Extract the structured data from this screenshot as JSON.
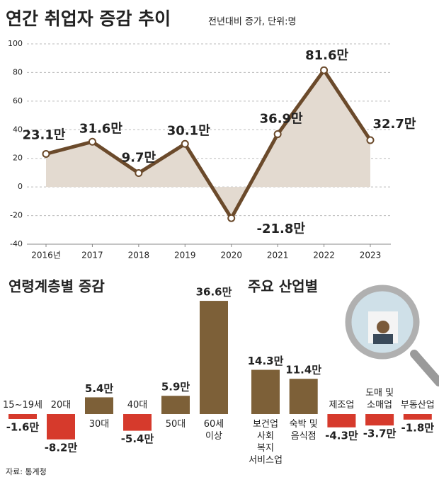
{
  "source": "자료: 통계청",
  "chart_data": [
    {
      "type": "line",
      "title": "연간 취업자 증감 추이",
      "subtitle": "전년대비 증가, 단위:명",
      "categories": [
        "2016년",
        "2017",
        "2018",
        "2019",
        "2020",
        "2021",
        "2022",
        "2023"
      ],
      "values": [
        23.1,
        31.6,
        9.7,
        30.1,
        -21.8,
        36.9,
        81.6,
        32.7
      ],
      "value_labels": [
        "23.1만",
        "31.6만",
        "9.7만",
        "30.1만",
        "-21.8만",
        "36.9만",
        "81.6만",
        "32.7만"
      ],
      "ylim": [
        -40,
        100
      ],
      "yticks": [
        -40,
        -20,
        0,
        20,
        40,
        60,
        80,
        100
      ],
      "grid": true,
      "color": "#6b4a2b",
      "area_color": "#e3dad0"
    },
    {
      "type": "bar",
      "title": "연령계층별 증감",
      "categories": [
        "15~19세",
        "20대",
        "30대",
        "40대",
        "50대",
        "60세\n이상"
      ],
      "values": [
        -1.6,
        -8.2,
        5.4,
        -5.4,
        5.9,
        36.6
      ],
      "value_labels": [
        "-1.6만",
        "-8.2만",
        "5.4만",
        "-5.4만",
        "5.9만",
        "36.6만"
      ],
      "color": "#7d6038",
      "negative_color": "#d63a2c"
    },
    {
      "type": "bar",
      "title": "주요 산업별",
      "categories": [
        "보건업\n사회\n복지\n서비스업",
        "숙박 및\n음식점",
        "제조업",
        "도매 및\n소매업",
        "부동산업"
      ],
      "values": [
        14.3,
        11.4,
        -4.3,
        -3.7,
        -1.8
      ],
      "value_labels": [
        "14.3만",
        "11.4만",
        "-4.3만",
        "-3.7만",
        "-1.8만"
      ],
      "color": "#7d6038",
      "negative_color": "#d63a2c"
    }
  ]
}
